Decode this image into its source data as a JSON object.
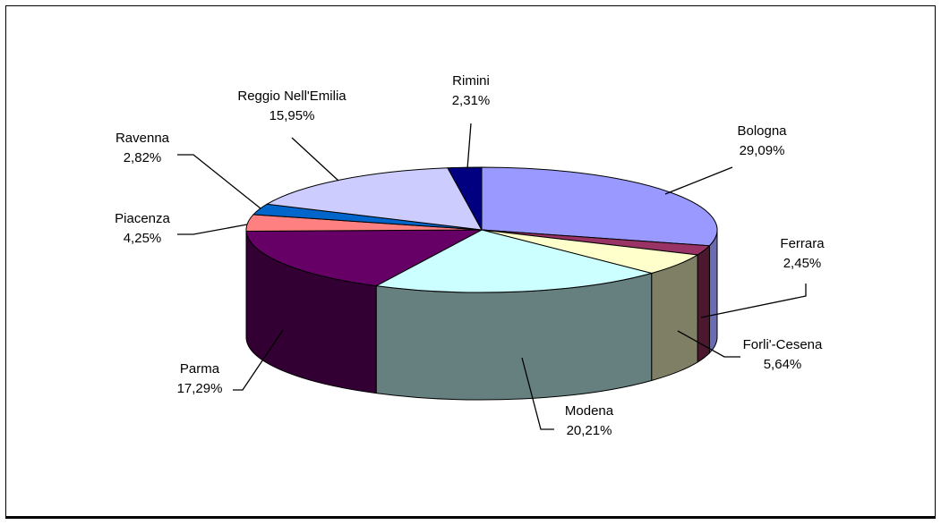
{
  "chart_data": {
    "type": "pie",
    "legend": "none",
    "slices": [
      {
        "label": "Bologna",
        "pct_label": "29,09%",
        "value": 29.09,
        "color": "#9999ff",
        "side": "#6b6bb3"
      },
      {
        "label": "Ferrara",
        "pct_label": "2,45%",
        "value": 2.45,
        "color": "#993366",
        "side": "#4a1930"
      },
      {
        "label": "Forli'-Cesena",
        "pct_label": "5,64%",
        "value": 5.64,
        "color": "#ffffcc",
        "side": "#7f7f66"
      },
      {
        "label": "Modena",
        "pct_label": "20,21%",
        "value": 20.21,
        "color": "#ccffff",
        "side": "#668080"
      },
      {
        "label": "Parma",
        "pct_label": "17,29%",
        "value": 17.29,
        "color": "#660066",
        "side": "#330033"
      },
      {
        "label": "Piacenza",
        "pct_label": "4,25%",
        "value": 4.25,
        "color": "#ff8080",
        "side": "#804040"
      },
      {
        "label": "Ravenna",
        "pct_label": "2,82%",
        "value": 2.82,
        "color": "#0066cc",
        "side": "#003366"
      },
      {
        "label": "Reggio Nell'Emilia",
        "pct_label": "15,95%",
        "value": 15.95,
        "color": "#ccccff",
        "side": "#666680"
      },
      {
        "label": "Rimini",
        "pct_label": "2,31%",
        "value": 2.31,
        "color": "#000080",
        "side": "#000040"
      }
    ]
  }
}
